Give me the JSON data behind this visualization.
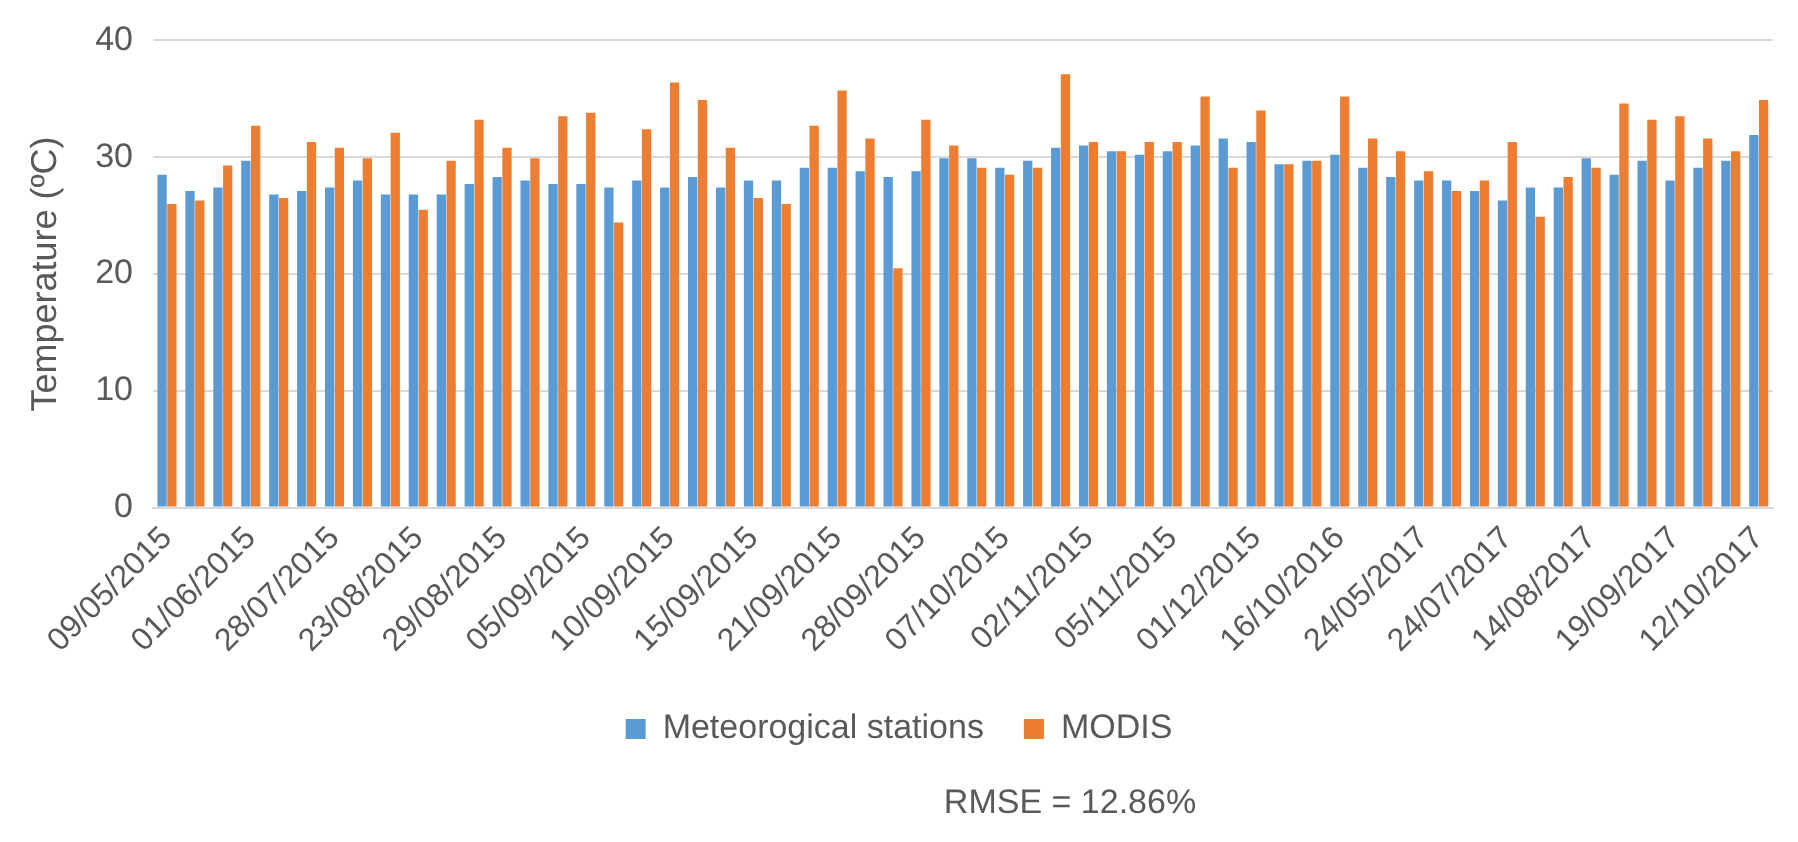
{
  "chart_data": {
    "type": "bar",
    "categories": [
      "09/05/2015",
      null,
      null,
      "01/06/2015",
      null,
      null,
      "28/07/2015",
      null,
      null,
      "23/08/2015",
      null,
      null,
      "29/08/2015",
      null,
      null,
      "05/09/2015",
      null,
      null,
      "10/09/2015",
      null,
      null,
      "15/09/2015",
      null,
      null,
      "21/09/2015",
      null,
      null,
      "28/09/2015",
      null,
      null,
      "07/10/2015",
      null,
      null,
      "02/11/2015",
      null,
      null,
      "05/11/2015",
      null,
      null,
      "01/12/2015",
      null,
      null,
      "16/10/2016",
      null,
      null,
      "24/05/2017",
      null,
      null,
      "24/07/2017",
      null,
      null,
      "14/08/2017",
      null,
      null,
      "19/09/2017",
      null,
      null,
      "12/10/2017"
    ],
    "series": [
      {
        "name": "Meteorogical stations",
        "color": "#5b9bd5",
        "values": [
          28.5,
          27.1,
          27.4,
          29.7,
          26.8,
          27.1,
          27.4,
          28.0,
          26.8,
          26.8,
          26.8,
          27.7,
          28.3,
          28.0,
          27.7,
          27.7,
          27.4,
          28.0,
          27.4,
          28.3,
          27.4,
          28.0,
          28.0,
          29.1,
          29.1,
          28.8,
          28.3,
          28.8,
          29.9,
          29.9,
          29.1,
          29.7,
          30.8,
          31.0,
          30.5,
          30.2,
          30.5,
          31.0,
          31.6,
          31.3,
          29.4,
          29.7,
          30.2,
          29.1,
          28.3,
          28.0,
          28.0,
          27.1,
          26.3,
          27.4,
          27.4,
          29.9,
          28.5,
          29.7,
          28.0,
          29.1,
          29.7,
          31.9
        ]
      },
      {
        "name": "MODIS",
        "color": "#ed7d31",
        "values": [
          26.0,
          26.3,
          29.3,
          32.7,
          26.5,
          31.3,
          30.8,
          29.9,
          32.1,
          25.5,
          29.7,
          33.2,
          30.8,
          29.9,
          33.5,
          33.8,
          24.4,
          32.4,
          36.4,
          34.9,
          30.8,
          26.5,
          26.0,
          32.7,
          35.7,
          31.6,
          20.5,
          33.2,
          31.0,
          29.1,
          28.5,
          29.1,
          37.1,
          31.3,
          30.5,
          31.3,
          31.3,
          35.2,
          29.1,
          34.0,
          29.4,
          29.7,
          35.2,
          31.6,
          30.5,
          28.8,
          27.1,
          28.0,
          31.3,
          24.9,
          28.3,
          29.1,
          34.6,
          33.2,
          33.5,
          31.6,
          30.5,
          34.9
        ]
      }
    ],
    "ylabel": "Temperature (ºC)",
    "ylim": [
      0,
      40
    ],
    "yticks": [
      0,
      10,
      20,
      30,
      40
    ],
    "grid": "y",
    "legend": "bottom",
    "annotations": [
      "RMSE = 12.86%"
    ]
  }
}
